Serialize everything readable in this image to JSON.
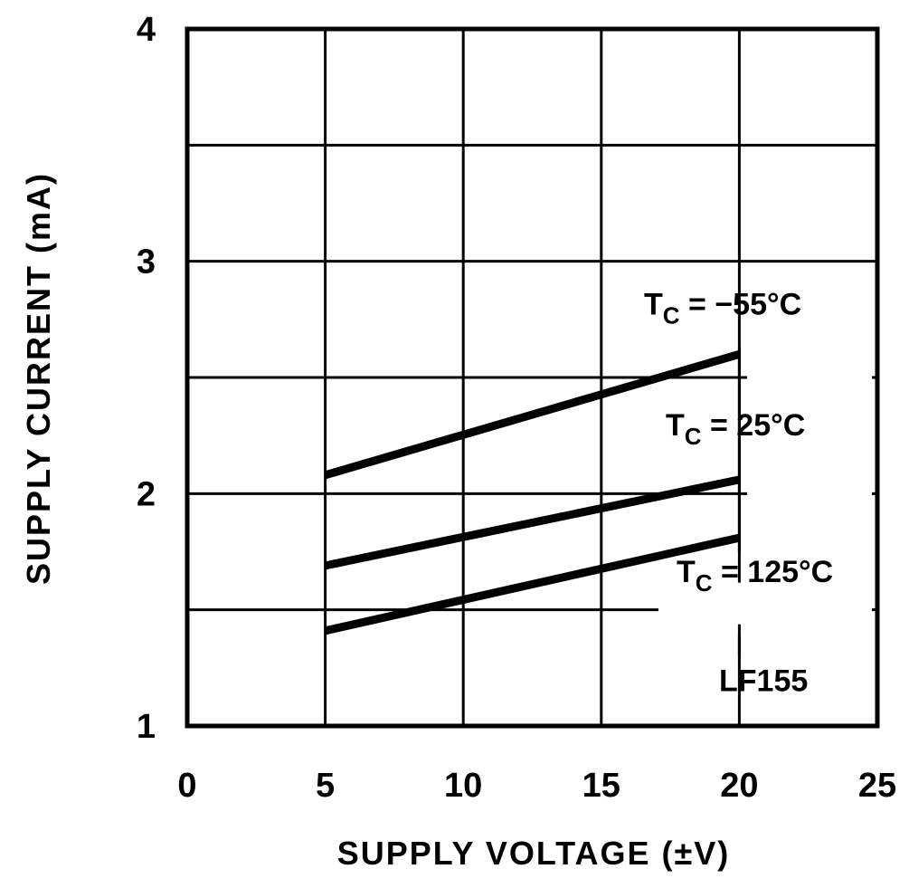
{
  "chart_data": {
    "type": "line",
    "title": "",
    "xlabel": "SUPPLY VOLTAGE (±V)",
    "ylabel": "SUPPLY CURRENT (mA)",
    "xlim": [
      0,
      25
    ],
    "ylim": [
      1,
      4
    ],
    "xticks": [
      0,
      5,
      10,
      15,
      20,
      25
    ],
    "xtick_labels": [
      "0",
      "5",
      "10",
      "15",
      "20",
      "25"
    ],
    "yticks": [
      1,
      2,
      3,
      4
    ],
    "ytick_labels": [
      "1",
      "2",
      "3",
      "4"
    ],
    "grid": true,
    "series": [
      {
        "label_main": "T",
        "label_sub": "C",
        "label_rest": " = −55°C",
        "x": [
          5,
          20
        ],
        "y": [
          2.08,
          2.6
        ]
      },
      {
        "label_main": "T",
        "label_sub": "C",
        "label_rest": " = 25°C",
        "x": [
          5,
          20
        ],
        "y": [
          1.69,
          2.06
        ]
      },
      {
        "label_main": "T",
        "label_sub": "C",
        "label_rest": " = 125°C",
        "x": [
          5,
          20
        ],
        "y": [
          1.41,
          1.81
        ]
      }
    ],
    "annotations": [
      "LF155"
    ]
  }
}
